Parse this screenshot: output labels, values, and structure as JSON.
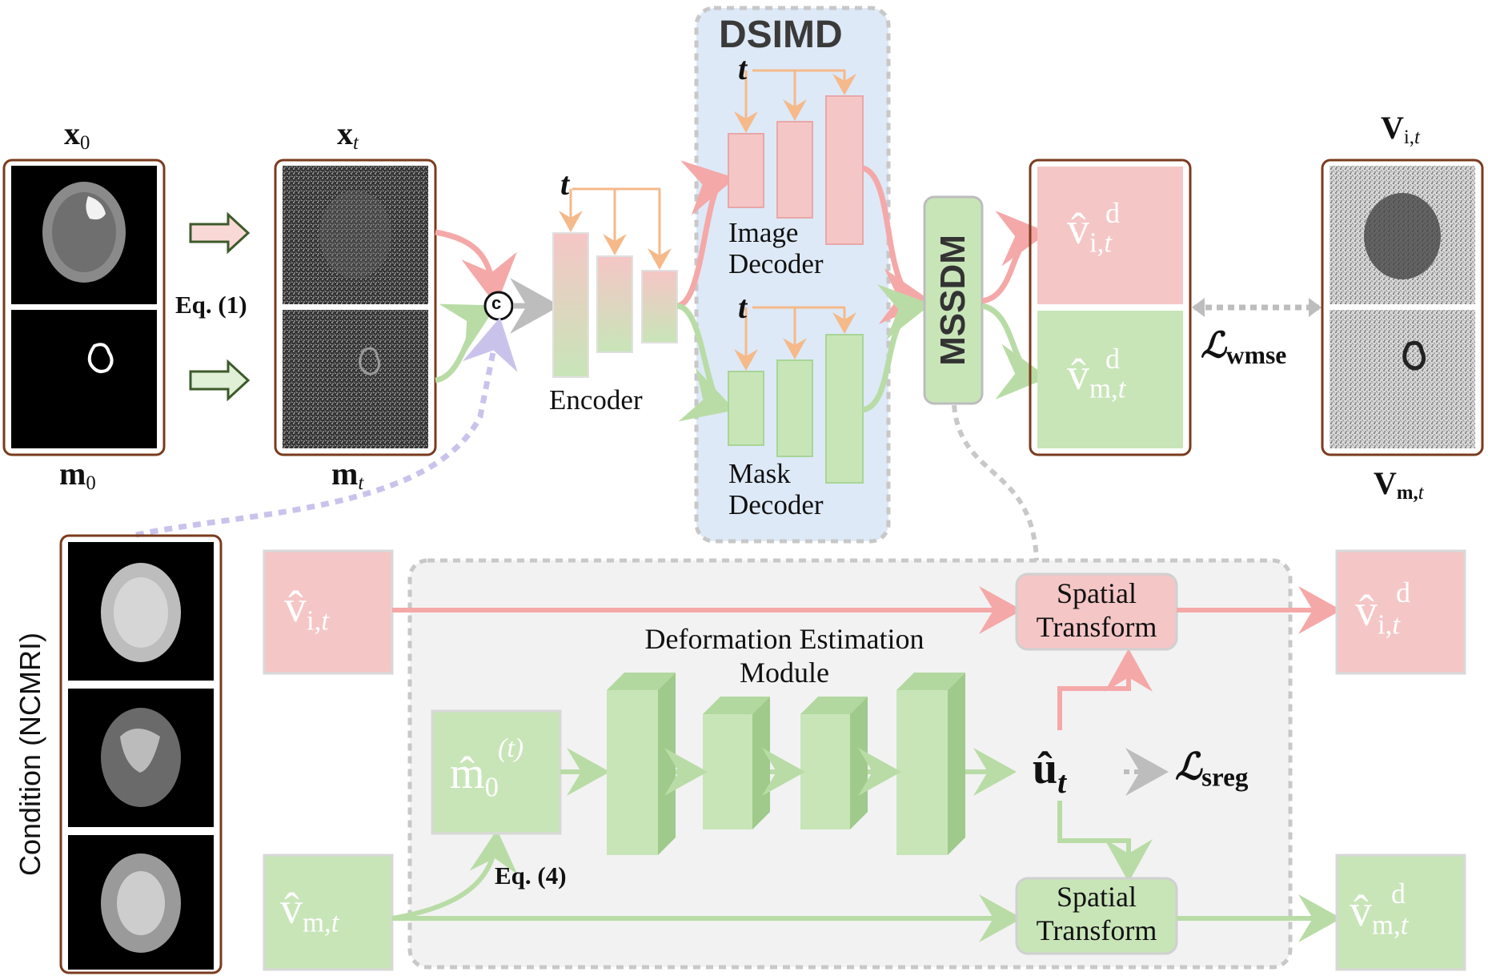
{
  "colors": {
    "pink": "#f5c6c6",
    "pink_stroke": "#f0a0a0",
    "green": "#c8e5b8",
    "green_stroke": "#a8d596",
    "orange_arrow": "#f5b98a",
    "frame_brown": "#7a3b1e",
    "dsimd_bg": "#dde9f7",
    "module_bg": "#f2f2f2",
    "dashed_gray": "#c8c8c8",
    "dashed_purple": "#c9c3ec"
  },
  "labels": {
    "x0": "x",
    "x0_sub": "0",
    "m0": "m",
    "m0_sub": "0",
    "xt": "x",
    "xt_sub": "t",
    "mt": "m",
    "mt_sub": "t",
    "eq1": "Eq. (1)",
    "concat": "c",
    "t_encoder": "t",
    "t_image_decoder": "t",
    "t_mask_decoder": "t",
    "encoder": "Encoder",
    "dsimd": "DSIMD",
    "image_decoder_line1": "Image",
    "image_decoder_line2": "Decoder",
    "mask_decoder_line1": "Mask",
    "mask_decoder_line2": "Decoder",
    "mssdm": "MSSDM",
    "v_hat_i_d": "v̂",
    "v_hat_i_d_sup": "d",
    "v_hat_i_d_sub": "i,",
    "v_hat_i_d_sub_t": "t",
    "v_hat_m_d": "v̂",
    "v_hat_m_d_sup": "d",
    "v_hat_m_d_sub": "m,",
    "v_hat_m_d_sub_t": "t",
    "loss_wmse": "ℒ",
    "loss_wmse_sub": "wmse",
    "v_it": "V",
    "v_it_sub": "i,",
    "v_it_sub_t": "t",
    "v_mt": "V",
    "v_mt_sub": "m,",
    "v_mt_sub_t": "t",
    "condition": "Condition (NCMRI)",
    "v_hat_it": "v̂",
    "v_hat_it_sub": "i,",
    "v_hat_it_sub_t": "t",
    "v_hat_mt": "v̂",
    "v_hat_mt_sub": "m,",
    "v_hat_mt_sub_t": "t",
    "m_hat_0": "m̂",
    "m_hat_0_sub": "0",
    "m_hat_0_sup": "(t)",
    "dem_line1": "Deformation Estimation",
    "dem_line2": "Module",
    "spatial_transform_line1": "Spatial",
    "spatial_transform_line2": "Transform",
    "u_hat_t": "û",
    "u_hat_t_sub": "t",
    "loss_sreg": "ℒ",
    "loss_sreg_sub": "sreg",
    "eq4": "Eq. (4)",
    "out_v_hat_i_d": "v̂",
    "out_v_hat_i_d_sup": "d",
    "out_v_hat_i_d_sub": "i,",
    "out_v_hat_i_d_sub_t": "t",
    "out_v_hat_m_d": "v̂",
    "out_v_hat_m_d_sup": "d",
    "out_v_hat_m_d_sub": "m,",
    "out_v_hat_m_d_sub_t": "t"
  }
}
